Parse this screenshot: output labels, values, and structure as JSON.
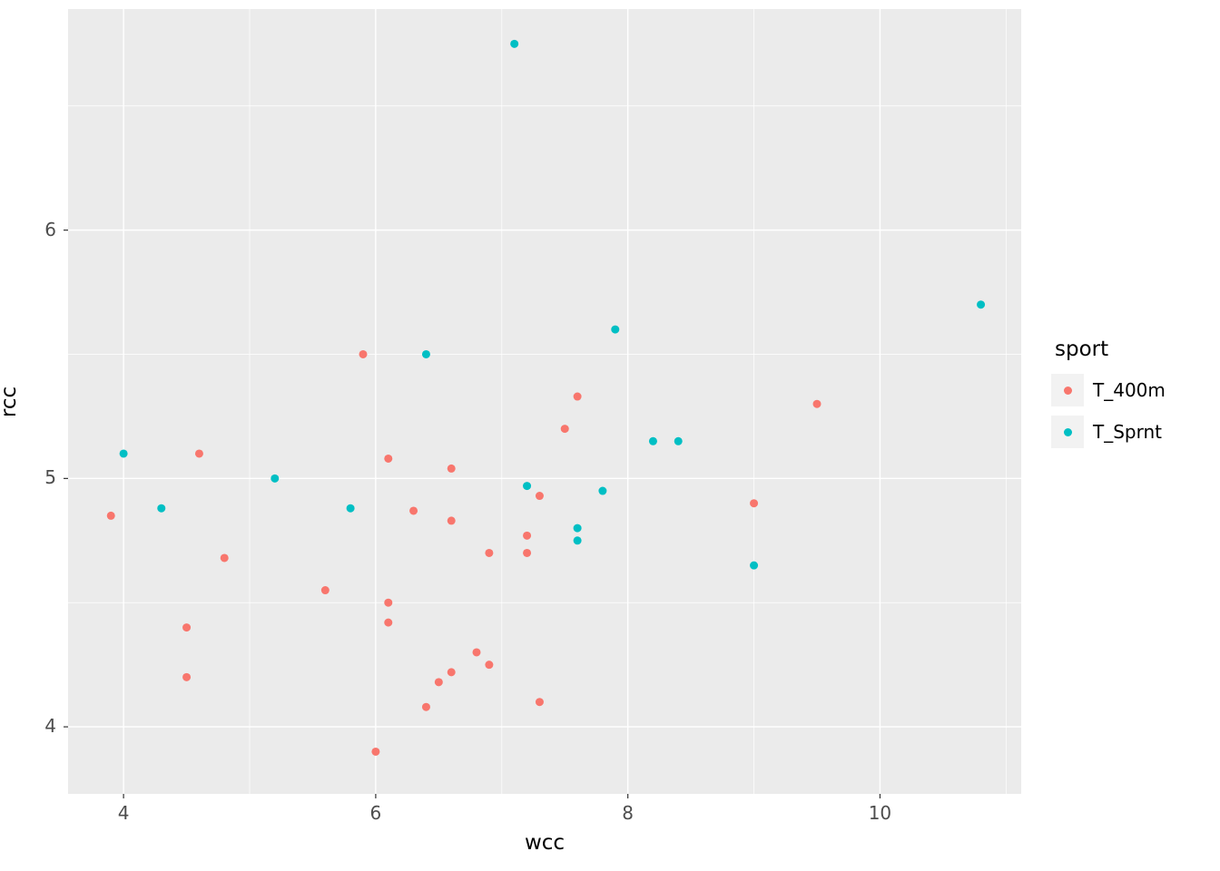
{
  "chart_data": {
    "type": "scatter",
    "title": "",
    "xlabel": "wcc",
    "ylabel": "rcc",
    "x_domain": [
      3.56,
      11.12
    ],
    "y_domain": [
      3.73,
      6.89
    ],
    "x_major_ticks": [
      4,
      6,
      8,
      10
    ],
    "x_tick_labels": [
      "4",
      "6",
      "8",
      "10"
    ],
    "x_minor_ticks": [
      5,
      7,
      9,
      11
    ],
    "y_major_ticks": [
      4,
      5,
      6
    ],
    "y_tick_labels": [
      "4",
      "5",
      "6"
    ],
    "y_minor_ticks": [
      4.5,
      5.5,
      6.5
    ],
    "grid": true,
    "panel_bg": "#EBEBEB",
    "grid_color": "#FFFFFF",
    "tick_color": "#333333",
    "tick_label_color": "#4D4D4D",
    "legend": {
      "title": "sport",
      "position": "right",
      "entries": [
        {
          "label": "T_400m",
          "color": "#F8766D"
        },
        {
          "label": "T_Sprnt",
          "color": "#00BFC4"
        }
      ]
    },
    "series": [
      {
        "name": "T_400m",
        "color": "#F8766D",
        "points": [
          [
            3.9,
            4.85
          ],
          [
            4.5,
            4.4
          ],
          [
            4.5,
            4.2
          ],
          [
            4.6,
            5.1
          ],
          [
            4.8,
            4.68
          ],
          [
            5.6,
            4.55
          ],
          [
            5.9,
            5.5
          ],
          [
            6.0,
            3.9
          ],
          [
            6.1,
            5.08
          ],
          [
            6.1,
            4.5
          ],
          [
            6.1,
            4.42
          ],
          [
            6.3,
            4.87
          ],
          [
            6.4,
            4.08
          ],
          [
            6.5,
            4.18
          ],
          [
            6.6,
            5.04
          ],
          [
            6.6,
            4.83
          ],
          [
            6.6,
            4.22
          ],
          [
            6.8,
            4.3
          ],
          [
            6.9,
            4.7
          ],
          [
            6.9,
            4.25
          ],
          [
            7.2,
            4.77
          ],
          [
            7.2,
            4.7
          ],
          [
            7.3,
            4.93
          ],
          [
            7.3,
            4.1
          ],
          [
            7.5,
            5.2
          ],
          [
            7.6,
            5.33
          ],
          [
            9.0,
            4.9
          ],
          [
            9.5,
            5.3
          ]
        ]
      },
      {
        "name": "T_Sprnt",
        "color": "#00BFC4",
        "points": [
          [
            4.0,
            5.1
          ],
          [
            4.3,
            4.88
          ],
          [
            5.2,
            5.0
          ],
          [
            5.8,
            4.88
          ],
          [
            6.4,
            5.5
          ],
          [
            7.1,
            6.75
          ],
          [
            7.2,
            4.97
          ],
          [
            7.6,
            4.8
          ],
          [
            7.6,
            4.75
          ],
          [
            7.8,
            4.95
          ],
          [
            7.9,
            5.6
          ],
          [
            8.2,
            5.15
          ],
          [
            8.4,
            5.15
          ],
          [
            9.0,
            4.65
          ],
          [
            10.8,
            5.7
          ]
        ]
      }
    ]
  }
}
